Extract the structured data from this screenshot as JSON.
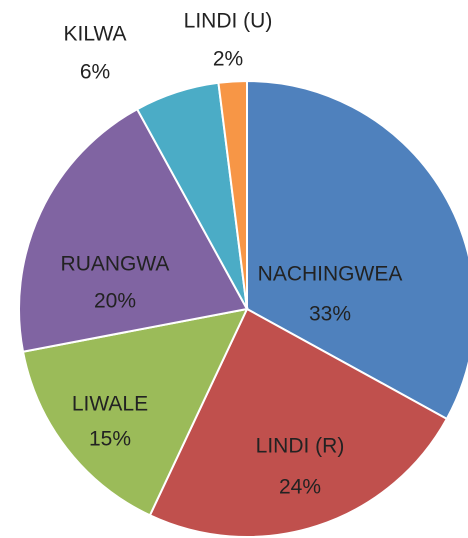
{
  "chart_data": {
    "type": "pie",
    "categories": [
      "NACHINGWEA",
      "LINDI (R)",
      "LIWALE",
      "RUANGWA",
      "KILWA",
      "LINDI (U)"
    ],
    "values": [
      33,
      24,
      15,
      20,
      6,
      2
    ],
    "value_labels": [
      "33%",
      "24%",
      "15%",
      "20%",
      "6%",
      "2%"
    ],
    "colors": [
      "#4f81bd",
      "#c0504d",
      "#9bbb59",
      "#8064a2",
      "#4bacc6",
      "#f79646"
    ]
  }
}
